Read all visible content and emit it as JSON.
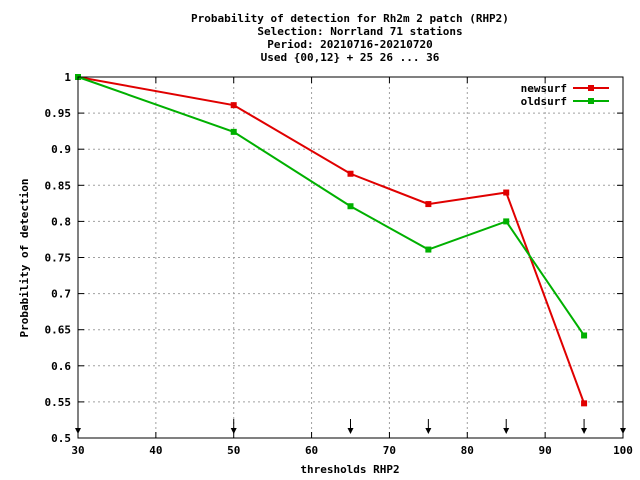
{
  "chart_data": {
    "type": "line",
    "title_lines": [
      "Probability of detection  for Rh2m 2 patch (RHP2)",
      "Selection: Norrland     71 stations",
      "Period: 20210716-20210720",
      "Used {00,12} + 25 26 ... 36"
    ],
    "xlabel": "thresholds RHP2",
    "ylabel": "Probability of detection",
    "xlim": [
      30,
      100
    ],
    "ylim": [
      0.5,
      1
    ],
    "xticks": [
      30,
      40,
      50,
      60,
      70,
      80,
      90,
      100
    ],
    "xtick_labels": [
      "30",
      "40",
      "50",
      "60",
      "70",
      "80",
      "90",
      "100"
    ],
    "yticks": [
      0.5,
      0.55,
      0.6,
      0.65,
      0.7,
      0.75,
      0.8,
      0.85,
      0.9,
      0.95,
      1
    ],
    "ytick_labels": [
      "0.5",
      "0.55",
      "0.6",
      "0.65",
      "0.7",
      "0.75",
      "0.8",
      "0.85",
      "0.9",
      "0.95",
      "1"
    ],
    "grid": true,
    "legend_position": "top-right",
    "threshold_markers": [
      30,
      50,
      65,
      75,
      85,
      95,
      100
    ],
    "series": [
      {
        "name": "newsurf",
        "color": "#e00000",
        "x": [
          30,
          50,
          65,
          75,
          85,
          95
        ],
        "y": [
          1.0,
          0.961,
          0.866,
          0.824,
          0.84,
          0.548
        ]
      },
      {
        "name": "oldsurf",
        "color": "#00b000",
        "x": [
          30,
          50,
          65,
          75,
          85,
          95
        ],
        "y": [
          1.0,
          0.924,
          0.821,
          0.761,
          0.8,
          0.642
        ]
      }
    ]
  }
}
